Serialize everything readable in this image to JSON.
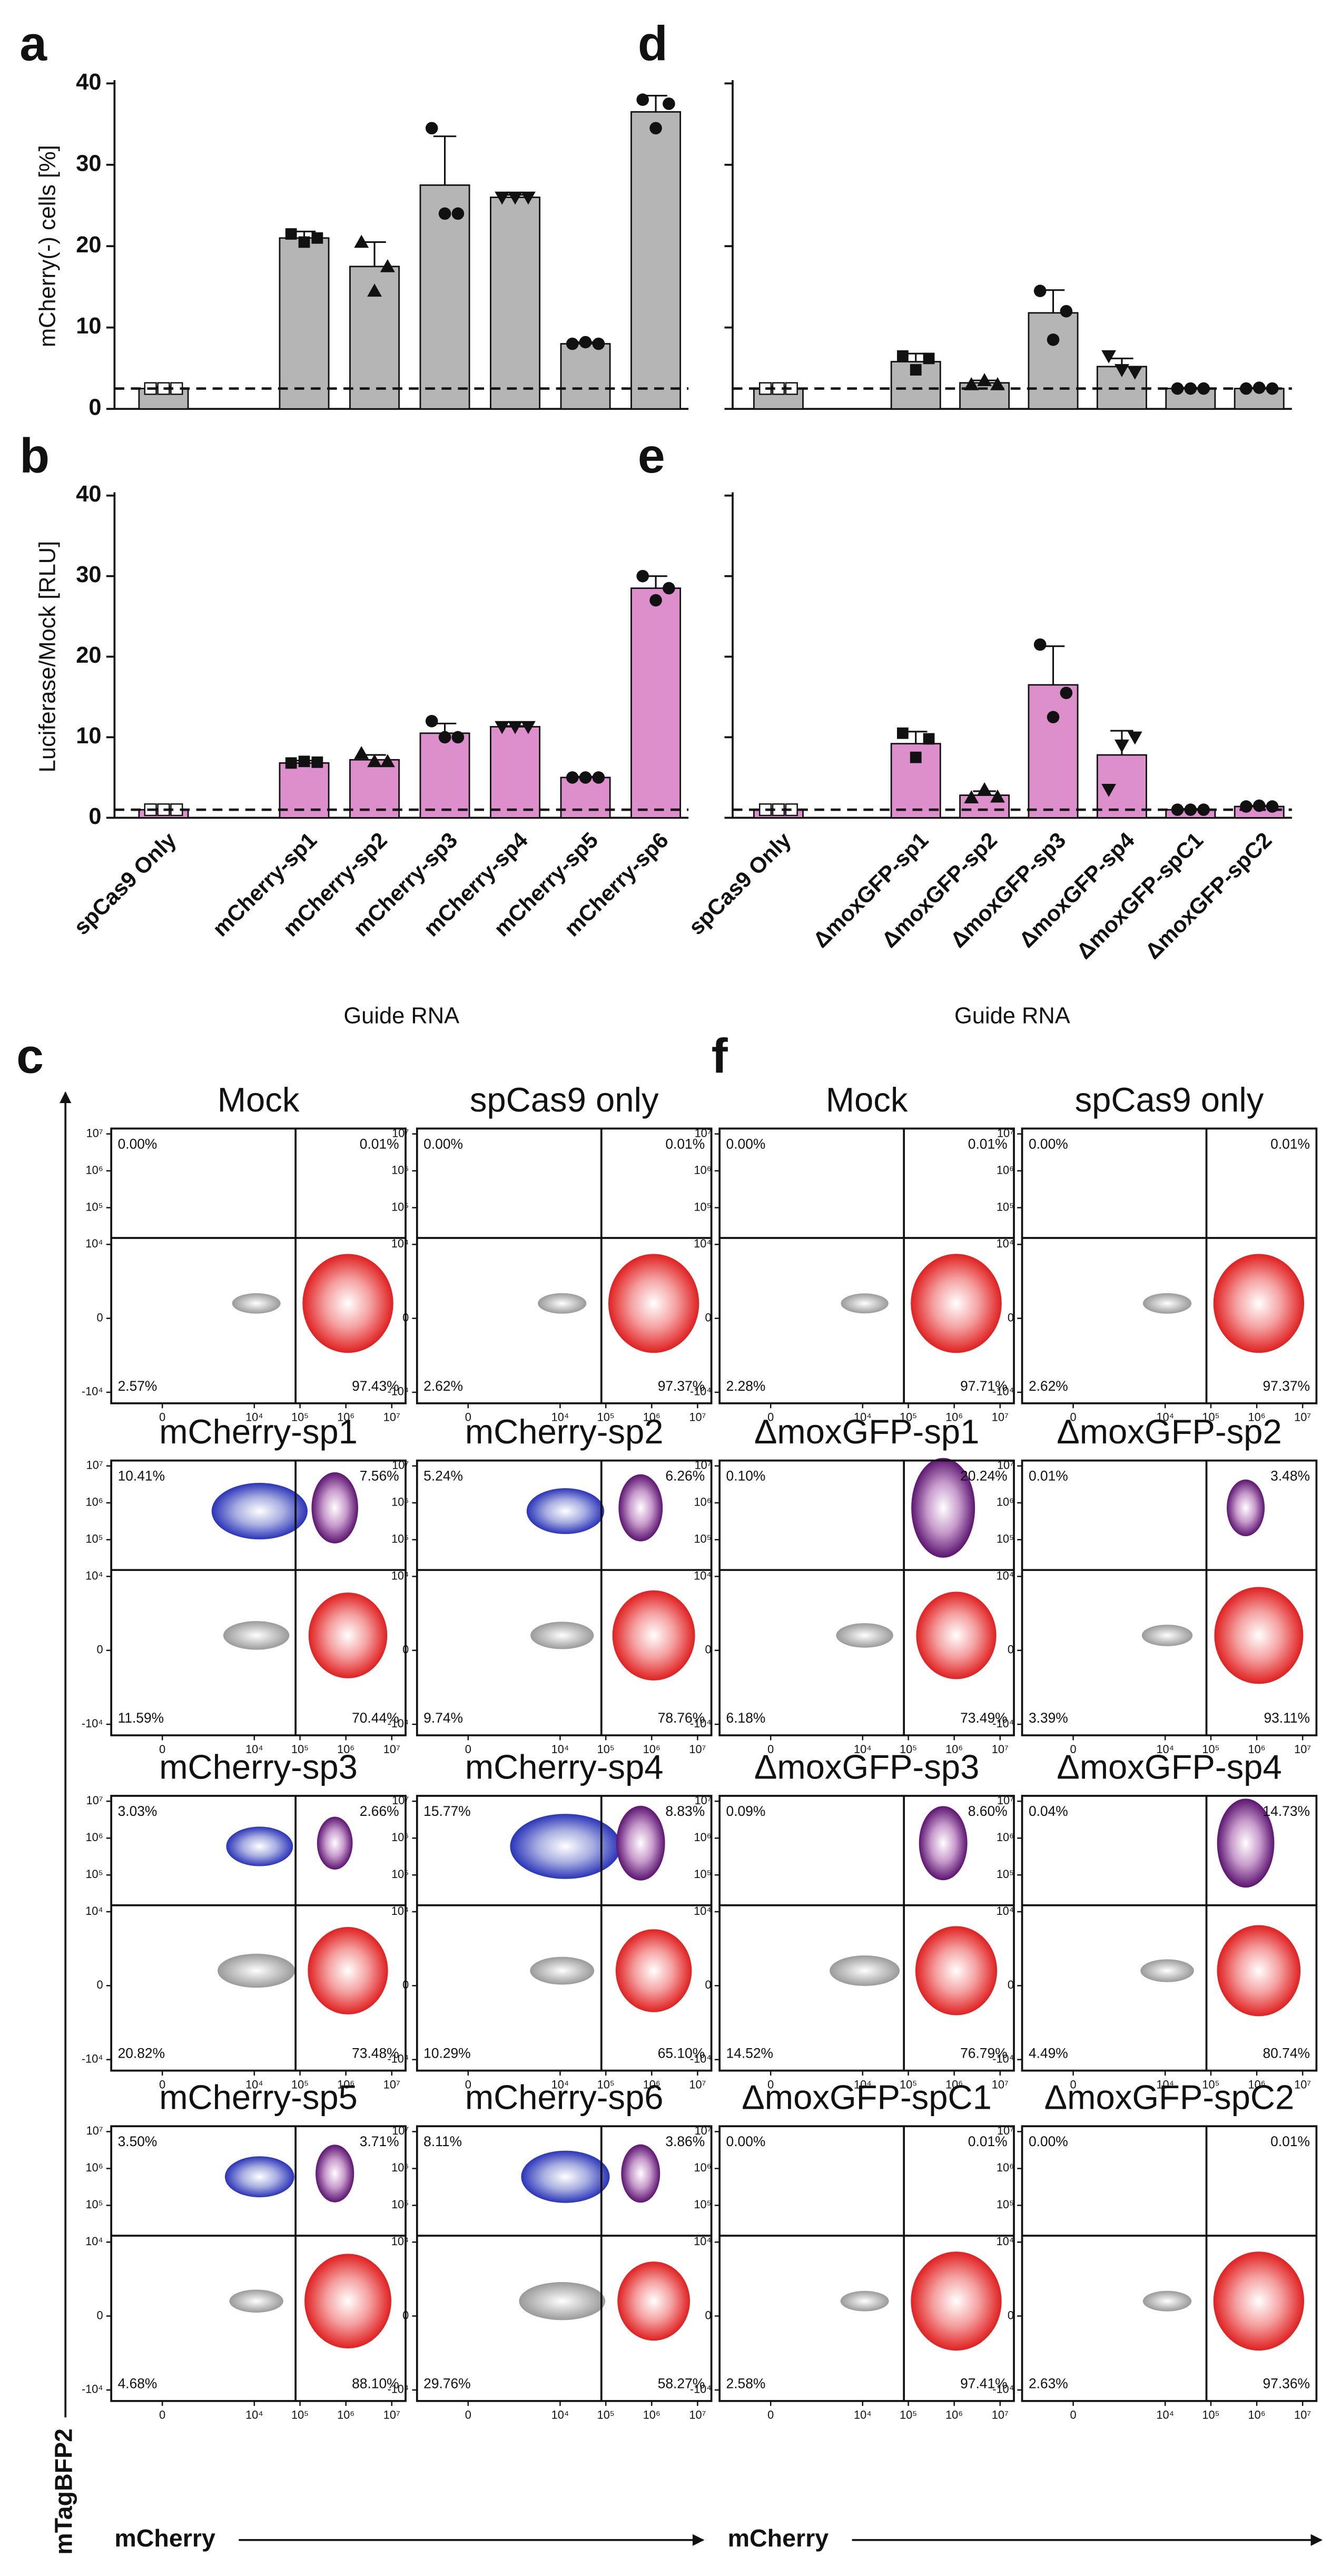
{
  "chart_data": [
    {
      "type": "bar",
      "panel": "a",
      "ylabel": "mCherry(-) cells [%]",
      "color": "#b5b5b5",
      "values": [
        2.5,
        21,
        17.5,
        27.5,
        26,
        8,
        36.5
      ],
      "errors": [
        0.2,
        0.8,
        3,
        6,
        0.3,
        0.2,
        2
      ],
      "points": [
        [
          2.5,
          2.5,
          2.5
        ],
        [
          21.5,
          20.5,
          21
        ],
        [
          20.5,
          14.5,
          17.5
        ],
        [
          34.5,
          24,
          24
        ],
        [
          26,
          26,
          26
        ],
        [
          8,
          8.2,
          8
        ],
        [
          38,
          34.5,
          37.5
        ]
      ],
      "baseline": 2.5,
      "ylim": [
        0,
        40
      ],
      "yticks": [
        0,
        10,
        20,
        30,
        40
      ],
      "tick_labels": true
    },
    {
      "type": "bar",
      "panel": "b",
      "ylabel": "Luciferase/Mock [RLU]",
      "xlabel": "Guide RNA",
      "color": "#dc8fcb",
      "categories": [
        "spCas9 Only",
        "mCherry-sp1",
        "mCherry-sp2",
        "mCherry-sp3",
        "mCherry-sp4",
        "mCherry-sp5",
        "mCherry-sp6"
      ],
      "values": [
        1,
        6.8,
        7.2,
        10.5,
        11.3,
        5,
        28.5
      ],
      "errors": [
        0.1,
        0.3,
        0.6,
        1.2,
        0.1,
        0.1,
        1.5
      ],
      "points": [
        [
          1,
          1,
          1
        ],
        [
          6.8,
          7,
          6.9
        ],
        [
          8,
          7,
          7
        ],
        [
          12,
          10,
          10
        ],
        [
          11.3,
          11.3,
          11.3
        ],
        [
          5,
          5,
          5
        ],
        [
          30,
          27,
          28.5
        ]
      ],
      "baseline": 1,
      "ylim": [
        0,
        40
      ],
      "yticks": [
        0,
        10,
        20,
        30,
        40
      ],
      "tick_labels": true
    },
    {
      "type": "bar",
      "panel": "d",
      "color": "#b5b5b5",
      "values": [
        2.5,
        5.8,
        3.2,
        11.8,
        5.2,
        2.5,
        2.5
      ],
      "errors": [
        0.2,
        1,
        0.3,
        2.8,
        1,
        0.1,
        0.1
      ],
      "points": [
        [
          2.5,
          2.5,
          2.5
        ],
        [
          6.5,
          4.8,
          6.2
        ],
        [
          3,
          3.5,
          3
        ],
        [
          14.5,
          8.5,
          12
        ],
        [
          6.5,
          4.8,
          4.5
        ],
        [
          2.5,
          2.5,
          2.5
        ],
        [
          2.5,
          2.6,
          2.5
        ]
      ],
      "baseline": 2.5,
      "ylim": [
        0,
        40
      ],
      "yticks": [
        0,
        10,
        20,
        30,
        40
      ],
      "tick_labels": false
    },
    {
      "type": "bar",
      "panel": "e",
      "xlabel": "Guide RNA",
      "color": "#dc8fcb",
      "categories": [
        "spCas9 Only",
        "ΔmoxGFP-sp1",
        "ΔmoxGFP-sp2",
        "ΔmoxGFP-sp3",
        "ΔmoxGFP-sp4",
        "ΔmoxGFP-spC1",
        "ΔmoxGFP-spC2"
      ],
      "values": [
        1,
        9.2,
        2.8,
        16.5,
        7.8,
        1,
        1.4
      ],
      "errors": [
        0.1,
        1.5,
        0.5,
        4.8,
        3,
        0.1,
        0.1
      ],
      "points": [
        [
          1,
          1,
          1
        ],
        [
          10.5,
          7.5,
          9.8
        ],
        [
          2.5,
          3.5,
          2.6
        ],
        [
          21.5,
          12.5,
          15.5
        ],
        [
          3.5,
          9,
          10
        ],
        [
          1,
          1,
          1
        ],
        [
          1.4,
          1.5,
          1.4
        ]
      ],
      "baseline": 1,
      "ylim": [
        0,
        40
      ],
      "yticks": [
        0,
        10,
        20,
        30,
        40
      ],
      "tick_labels": false
    },
    {
      "type": "flow",
      "panel": "c",
      "xlabel": "mCherry",
      "ylabel": "mTagBFP2",
      "xlim": [
        -1200,
        20000000
      ],
      "ylim": [
        -20000,
        14000000
      ],
      "xticks": [
        0,
        {
          "value": 10000,
          "label": "10⁴"
        },
        {
          "value": 100000,
          "label": "10⁵"
        },
        {
          "value": 1000000,
          "label": "10⁶"
        },
        {
          "value": 10000000,
          "label": "10⁷"
        }
      ],
      "yticks": [
        {
          "value": -10000,
          "label": "-10⁴"
        },
        0,
        {
          "value": 10000,
          "label": "10⁴"
        },
        {
          "value": 100000,
          "label": "10⁵"
        },
        {
          "value": 1000000,
          "label": "10⁶"
        },
        {
          "value": 10000000,
          "label": "10⁷"
        }
      ],
      "gates": {
        "x": 80000,
        "y": 15000
      },
      "plots": [
        {
          "title": "Mock",
          "values": [
            0,
            0.01,
            2.57,
            97.43
          ],
          "value_labels": [
            "0.00%",
            "0.01%",
            "2.57%",
            "97.43%"
          ]
        },
        {
          "title": "spCas9 only",
          "values": [
            0,
            0.01,
            2.62,
            97.37
          ],
          "value_labels": [
            "0.00%",
            "0.01%",
            "2.62%",
            "97.37%"
          ]
        },
        {
          "title": "mCherry-sp1",
          "values": [
            10.41,
            7.56,
            11.59,
            70.44
          ],
          "value_labels": [
            "10.41%",
            "7.56%",
            "11.59%",
            "70.44%"
          ]
        },
        {
          "title": "mCherry-sp2",
          "values": [
            5.24,
            6.26,
            9.74,
            78.76
          ],
          "value_labels": [
            "5.24%",
            "6.26%",
            "9.74%",
            "78.76%"
          ]
        },
        {
          "title": "mCherry-sp3",
          "values": [
            3.03,
            2.66,
            20.82,
            73.48
          ],
          "value_labels": [
            "3.03%",
            "2.66%",
            "20.82%",
            "73.48%"
          ]
        },
        {
          "title": "mCherry-sp4",
          "values": [
            15.77,
            8.83,
            10.29,
            65.1
          ],
          "value_labels": [
            "15.77%",
            "8.83%",
            "10.29%",
            "65.10%"
          ]
        },
        {
          "title": "mCherry-sp5",
          "values": [
            3.5,
            3.71,
            4.68,
            88.1
          ],
          "value_labels": [
            "3.50%",
            "3.71%",
            "4.68%",
            "88.10%"
          ]
        },
        {
          "title": "mCherry-sp6",
          "values": [
            8.11,
            3.86,
            29.76,
            58.27
          ],
          "value_labels": [
            "8.11%",
            "3.86%",
            "29.76%",
            "58.27%"
          ]
        }
      ]
    },
    {
      "type": "flow",
      "panel": "f",
      "xlabel": "mCherry",
      "xlim": [
        -1200,
        20000000
      ],
      "ylim": [
        -20000,
        14000000
      ],
      "xticks": [
        0,
        {
          "value": 10000,
          "label": "10⁴"
        },
        {
          "value": 100000,
          "label": "10⁵"
        },
        {
          "value": 1000000,
          "label": "10⁶"
        },
        {
          "value": 10000000,
          "label": "10⁷"
        }
      ],
      "yticks": [
        {
          "value": -10000,
          "label": "-10⁴"
        },
        0,
        {
          "value": 10000,
          "label": "10⁴"
        },
        {
          "value": 100000,
          "label": "10⁵"
        },
        {
          "value": 1000000,
          "label": "10⁶"
        },
        {
          "value": 10000000,
          "label": "10⁷"
        }
      ],
      "gates": {
        "x": 80000,
        "y": 15000
      },
      "plots": [
        {
          "title": "Mock",
          "values": [
            0,
            0.01,
            2.28,
            97.71
          ],
          "value_labels": [
            "0.00%",
            "0.01%",
            "2.28%",
            "97.71%"
          ]
        },
        {
          "title": "spCas9 only",
          "values": [
            0,
            0.01,
            2.62,
            97.37
          ],
          "value_labels": [
            "0.00%",
            "0.01%",
            "2.62%",
            "97.37%"
          ]
        },
        {
          "title": "ΔmoxGFP-sp1",
          "values": [
            0.1,
            20.24,
            6.18,
            73.49
          ],
          "value_labels": [
            "0.10%",
            "20.24%",
            "6.18%",
            "73.49%"
          ]
        },
        {
          "title": "ΔmoxGFP-sp2",
          "values": [
            0.01,
            3.48,
            3.39,
            93.11
          ],
          "value_labels": [
            "0.01%",
            "3.48%",
            "3.39%",
            "93.11%"
          ]
        },
        {
          "title": "ΔmoxGFP-sp3",
          "values": [
            0.09,
            8.6,
            14.52,
            76.79
          ],
          "value_labels": [
            "0.09%",
            "8.60%",
            "14.52%",
            "76.79%"
          ]
        },
        {
          "title": "ΔmoxGFP-sp4",
          "values": [
            0.04,
            14.73,
            4.49,
            80.74
          ],
          "value_labels": [
            "0.04%",
            "14.73%",
            "4.49%",
            "80.74%"
          ]
        },
        {
          "title": "ΔmoxGFP-spC1",
          "values": [
            0,
            0.01,
            2.58,
            97.41
          ],
          "value_labels": [
            "0.00%",
            "0.01%",
            "2.58%",
            "97.41%"
          ]
        },
        {
          "title": "ΔmoxGFP-spC2",
          "values": [
            0,
            0.01,
            2.63,
            97.36
          ],
          "value_labels": [
            "0.00%",
            "0.01%",
            "2.63%",
            "97.36%"
          ]
        }
      ]
    }
  ]
}
